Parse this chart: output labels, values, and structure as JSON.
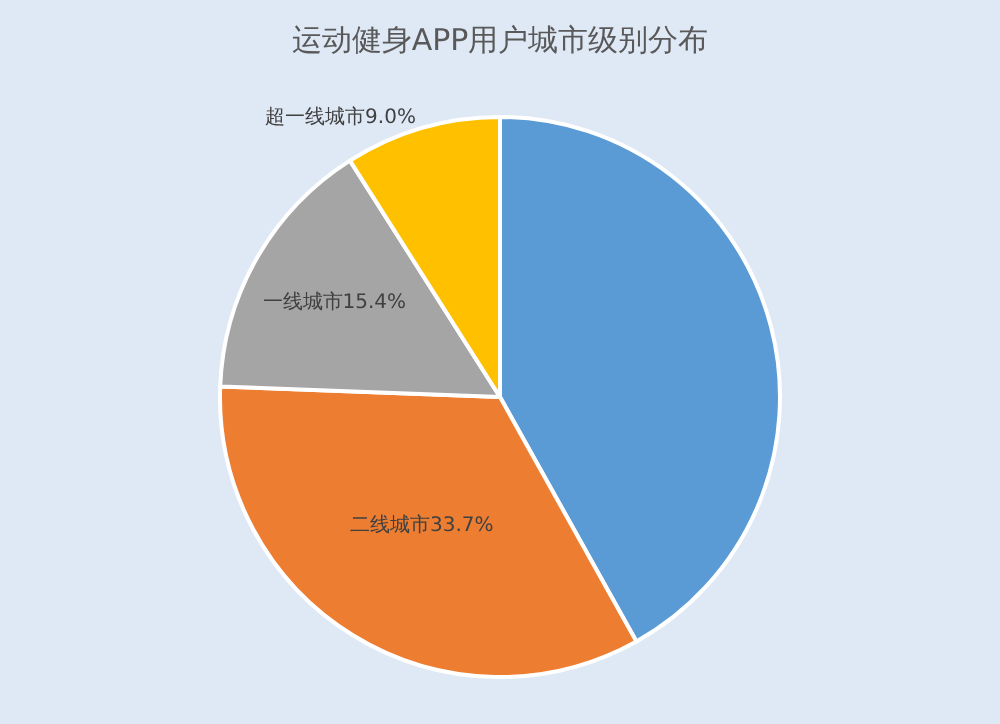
{
  "chart_data": {
    "type": "pie",
    "title": "运动健身APP用户城市级别分布",
    "categories": [
      null,
      "二线城市",
      "一线城市",
      "超一线城市"
    ],
    "values": [
      41.9,
      33.7,
      15.4,
      9.0
    ],
    "value_labels": [
      null,
      "33.7%",
      "15.4%",
      "9.0%"
    ],
    "colors": [
      "#5b9bd5",
      "#ed7d31",
      "#a5a5a5",
      "#ffc000"
    ],
    "legend": false
  }
}
